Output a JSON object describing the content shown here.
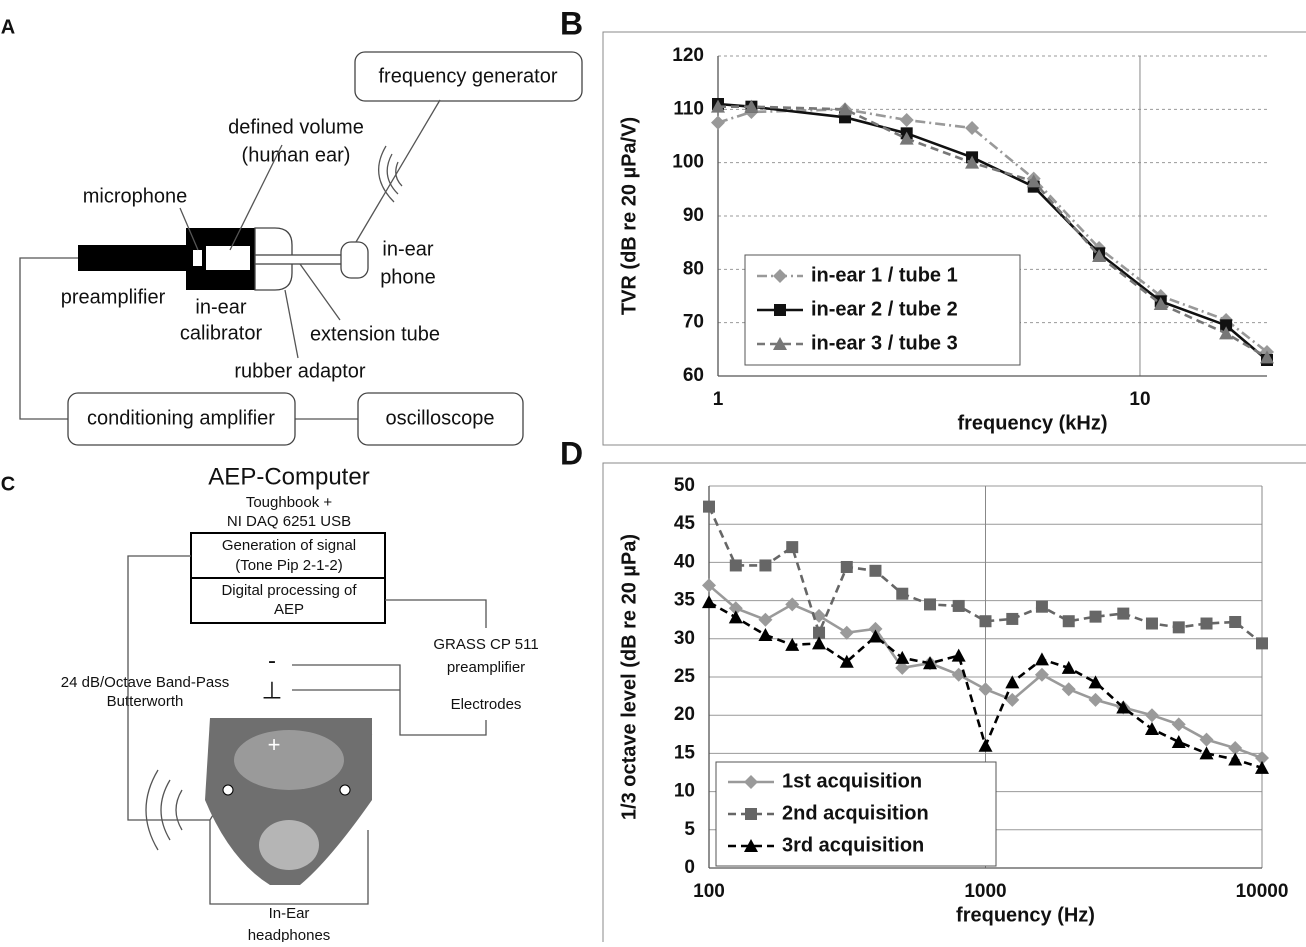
{
  "panels": {
    "A": {
      "label": "A",
      "frequency_generator": "frequency generator",
      "defined_volume": [
        "defined volume",
        "(human ear)"
      ],
      "microphone": "microphone",
      "in_ear_phone": [
        "in-ear",
        "phone"
      ],
      "preamplifier": "preamplifier",
      "in_ear_calibrator": [
        "in-ear",
        "calibrator"
      ],
      "extension_tube": "extension tube",
      "rubber_adaptor": "rubber adaptor",
      "conditioning_amplifier": "conditioning amplifier",
      "oscilloscope": "oscilloscope"
    },
    "C": {
      "label": "C",
      "computer_title": "AEP-Computer",
      "computer_details": [
        "Toughbook +",
        "NI DAQ 6251 USB"
      ],
      "signal_box": [
        "Generation of signal",
        "(Tone Pip 2-1-2)"
      ],
      "processing_box": [
        "Digital processing of",
        "AEP"
      ],
      "preamplifier": [
        "GRASS CP 511",
        "preamplifier"
      ],
      "electrodes": "Electrodes",
      "filter": [
        "24 dB/Octave Band-Pass",
        "Butterworth"
      ],
      "electrode_minus": "-",
      "electrode_ground": "⊥",
      "electrode_plus": "+",
      "headphones": [
        "In-Ear",
        "headphones"
      ]
    }
  },
  "chart_data": [
    {
      "type": "line",
      "panel": "B",
      "xlabel": "frequency (kHz)",
      "ylabel": "TVR (dB re 20 µPa/V)",
      "x": [
        1,
        1.2,
        2,
        2.8,
        4,
        5.6,
        8,
        11.2,
        16,
        20
      ],
      "xlog": true,
      "xlim": [
        1,
        20
      ],
      "xticks": [
        1,
        10
      ],
      "ylim": [
        60,
        120
      ],
      "yticks": [
        60,
        70,
        80,
        90,
        100,
        110,
        120
      ],
      "grid": true,
      "legend": "lower left",
      "series": [
        {
          "name": "in-ear 1 / tube 1",
          "color": "#999999",
          "marker": "diamond",
          "line_style": "dashdot",
          "values": [
            107.5,
            109.5,
            110,
            108,
            106.5,
            97,
            84,
            75,
            70.5,
            64.5
          ]
        },
        {
          "name": "in-ear 2 / tube 2",
          "color": "#111111",
          "marker": "square",
          "line_style": "solid",
          "values": [
            111,
            110.5,
            108.5,
            105.5,
            101,
            95.5,
            83,
            74,
            69.5,
            63
          ]
        },
        {
          "name": "in-ear 3 / tube 3",
          "color": "#777777",
          "marker": "triangle",
          "line_style": "dashed",
          "values": [
            110.5,
            110.5,
            110,
            104.5,
            100,
            96.5,
            82.5,
            73.5,
            68,
            63.5
          ]
        }
      ]
    },
    {
      "type": "line",
      "panel": "D",
      "xlabel": "frequency (Hz)",
      "ylabel": "1/3 octave level (dB re 20 µPa)",
      "x": [
        100,
        125,
        160,
        200,
        250,
        315,
        400,
        500,
        630,
        800,
        1000,
        1250,
        1600,
        2000,
        2500,
        3150,
        4000,
        5000,
        6300,
        8000,
        10000
      ],
      "xlog": true,
      "xlim": [
        100,
        10000
      ],
      "xticks": [
        100,
        1000,
        10000
      ],
      "ylim": [
        0,
        50
      ],
      "yticks": [
        0,
        5,
        10,
        15,
        20,
        25,
        30,
        35,
        40,
        45,
        50
      ],
      "grid": true,
      "legend": "lower left",
      "series": [
        {
          "name": "1st acquisition",
          "color": "#9a9a9a",
          "marker": "diamond",
          "line_style": "solid",
          "values": [
            37,
            34,
            32.5,
            34.5,
            33,
            30.8,
            31.3,
            26.2,
            26.8,
            25.3,
            23.4,
            22,
            25.3,
            23.4,
            22,
            21,
            20,
            18.8,
            16.8,
            15.7,
            14.4
          ]
        },
        {
          "name": "2nd acquisition",
          "color": "#666666",
          "marker": "square",
          "line_style": "dashed",
          "values": [
            47.3,
            39.6,
            39.6,
            42,
            30.8,
            39.4,
            38.9,
            35.9,
            34.5,
            34.3,
            32.3,
            32.6,
            34.2,
            32.3,
            32.9,
            33.3,
            32,
            31.5,
            32,
            32.2,
            29.4
          ]
        },
        {
          "name": "3rd acquisition",
          "color": "#000000",
          "marker": "triangle",
          "line_style": "dashed",
          "values": [
            34.8,
            32.8,
            30.5,
            29.2,
            29.4,
            27,
            30.3,
            27.5,
            26.8,
            27.8,
            16,
            24.3,
            27.3,
            26.2,
            24.3,
            21,
            18.2,
            16.5,
            15,
            14.2,
            13.1
          ]
        }
      ]
    }
  ]
}
